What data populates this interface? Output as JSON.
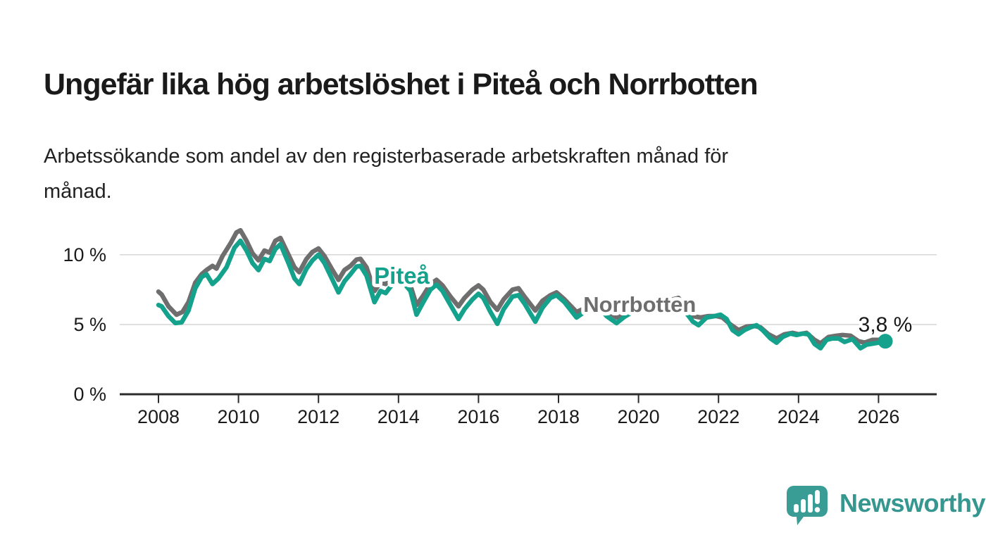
{
  "title": "Ungefär lika hög arbetslöshet i Piteå och Norrbotten",
  "subtitle_lines": [
    "Arbetssökande som andel av den registerbaserade arbetskraften månad för",
    "månad."
  ],
  "branding": {
    "name": "Newsworthy",
    "icon": "bar-chart-speech-bubble-icon",
    "text_color": "#35978f",
    "bubble_color": "#3a9d95"
  },
  "colors": {
    "pitea": "#14a28d",
    "norrbotten": "#6e6e6e",
    "grid": "#d9d9d9",
    "axis": "#2b2b2b",
    "text": "#1b1b1b",
    "annotation": "#1a1a1a"
  },
  "chart_data": {
    "type": "line",
    "title": "Ungefär lika hög arbetslöshet i Piteå och Norrbotten",
    "xlabel": "",
    "ylabel": "Arbetssökande som andel av den registerbaserade arbetskraften",
    "unit": "%",
    "xlim": [
      2007.03,
      2027.45
    ],
    "ylim": [
      0,
      12.6
    ],
    "grid": "horizontal",
    "legend_position": "inline-labels",
    "x_ticks": [
      {
        "value": 2008,
        "label": "2008"
      },
      {
        "value": 2010,
        "label": "2010"
      },
      {
        "value": 2012,
        "label": "2012"
      },
      {
        "value": 2014,
        "label": "2014"
      },
      {
        "value": 2016,
        "label": "2016"
      },
      {
        "value": 2018,
        "label": "2018"
      },
      {
        "value": 2020,
        "label": "2020"
      },
      {
        "value": 2022,
        "label": "2022"
      },
      {
        "value": 2024,
        "label": "2024"
      },
      {
        "value": 2026,
        "label": "2026"
      }
    ],
    "y_ticks": [
      {
        "value": 0,
        "label": "0 %"
      },
      {
        "value": 5,
        "label": "5 %"
      },
      {
        "value": 10,
        "label": "10 %"
      }
    ],
    "latest_annotation": {
      "text": "3,8 %",
      "series": "Piteå",
      "x": 2026.17,
      "value": 3.8
    },
    "series_labels": [
      {
        "text": "Piteå",
        "color": "#14a28d",
        "anchor_year": 2013.39,
        "anchor_value": 7.92,
        "font_size": 33
      },
      {
        "text": "Norrbotten",
        "color": "#6e6e6e",
        "anchor_year": 2018.62,
        "anchor_value": 5.9,
        "font_size": 31
      }
    ],
    "series": [
      {
        "name": "Norrbotten",
        "color": "#6e6e6e",
        "points": [
          [
            2008.0,
            7.35
          ],
          [
            2008.08,
            7.15
          ],
          [
            2008.25,
            6.3
          ],
          [
            2008.45,
            5.7
          ],
          [
            2008.6,
            5.9
          ],
          [
            2008.75,
            6.6
          ],
          [
            2008.92,
            8.0
          ],
          [
            2009.08,
            8.6
          ],
          [
            2009.2,
            8.9
          ],
          [
            2009.35,
            9.2
          ],
          [
            2009.45,
            9.0
          ],
          [
            2009.6,
            9.9
          ],
          [
            2009.8,
            10.8
          ],
          [
            2009.95,
            11.6
          ],
          [
            2010.05,
            11.75
          ],
          [
            2010.2,
            11.0
          ],
          [
            2010.35,
            10.1
          ],
          [
            2010.5,
            9.6
          ],
          [
            2010.65,
            10.3
          ],
          [
            2010.78,
            10.15
          ],
          [
            2010.92,
            11.0
          ],
          [
            2011.05,
            11.2
          ],
          [
            2011.25,
            10.0
          ],
          [
            2011.4,
            9.1
          ],
          [
            2011.52,
            8.75
          ],
          [
            2011.7,
            9.7
          ],
          [
            2011.85,
            10.2
          ],
          [
            2012.0,
            10.45
          ],
          [
            2012.15,
            9.9
          ],
          [
            2012.35,
            8.9
          ],
          [
            2012.5,
            8.2
          ],
          [
            2012.65,
            8.9
          ],
          [
            2012.8,
            9.2
          ],
          [
            2012.95,
            9.65
          ],
          [
            2013.05,
            9.7
          ],
          [
            2013.2,
            9.1
          ],
          [
            2013.4,
            7.4
          ],
          [
            2013.55,
            8.0
          ],
          [
            2013.68,
            7.9
          ],
          [
            2013.85,
            8.5
          ],
          [
            2014.0,
            8.9
          ],
          [
            2014.15,
            8.5
          ],
          [
            2014.3,
            7.8
          ],
          [
            2014.45,
            6.4
          ],
          [
            2014.6,
            7.0
          ],
          [
            2014.8,
            7.9
          ],
          [
            2014.95,
            8.2
          ],
          [
            2015.1,
            7.8
          ],
          [
            2015.3,
            7.0
          ],
          [
            2015.5,
            6.3
          ],
          [
            2015.65,
            6.9
          ],
          [
            2015.85,
            7.5
          ],
          [
            2016.0,
            7.8
          ],
          [
            2016.12,
            7.5
          ],
          [
            2016.3,
            6.6
          ],
          [
            2016.47,
            6.05
          ],
          [
            2016.63,
            6.8
          ],
          [
            2016.85,
            7.5
          ],
          [
            2017.0,
            7.6
          ],
          [
            2017.15,
            7.0
          ],
          [
            2017.42,
            6.0
          ],
          [
            2017.6,
            6.7
          ],
          [
            2017.8,
            7.1
          ],
          [
            2017.95,
            7.3
          ],
          [
            2018.15,
            6.8
          ],
          [
            2018.45,
            5.9
          ],
          [
            2018.65,
            6.15
          ],
          [
            2018.85,
            6.4
          ],
          [
            2019.0,
            6.6
          ],
          [
            2019.2,
            6.0
          ],
          [
            2019.45,
            5.5
          ],
          [
            2019.65,
            5.8
          ],
          [
            2019.85,
            6.1
          ],
          [
            2020.05,
            6.25
          ],
          [
            2020.3,
            6.5
          ],
          [
            2020.55,
            6.6
          ],
          [
            2020.8,
            6.75
          ],
          [
            2021.0,
            6.9
          ],
          [
            2021.2,
            6.1
          ],
          [
            2021.36,
            5.6
          ],
          [
            2021.55,
            5.5
          ],
          [
            2021.75,
            5.6
          ],
          [
            2021.95,
            5.6
          ],
          [
            2022.1,
            5.5
          ],
          [
            2022.3,
            5.0
          ],
          [
            2022.5,
            4.6
          ],
          [
            2022.7,
            4.85
          ],
          [
            2022.9,
            4.9
          ],
          [
            2023.05,
            4.8
          ],
          [
            2023.25,
            4.3
          ],
          [
            2023.45,
            4.0
          ],
          [
            2023.65,
            4.3
          ],
          [
            2023.85,
            4.4
          ],
          [
            2024.0,
            4.3
          ],
          [
            2024.2,
            4.4
          ],
          [
            2024.4,
            3.9
          ],
          [
            2024.55,
            3.65
          ],
          [
            2024.75,
            4.1
          ],
          [
            2024.95,
            4.2
          ],
          [
            2025.1,
            4.25
          ],
          [
            2025.3,
            4.2
          ],
          [
            2025.5,
            3.8
          ],
          [
            2025.65,
            3.7
          ],
          [
            2025.85,
            3.9
          ],
          [
            2026.0,
            3.9
          ],
          [
            2026.1,
            3.95
          ]
        ]
      },
      {
        "name": "Piteå",
        "color": "#14a28d",
        "points": [
          [
            2008.0,
            6.4
          ],
          [
            2008.08,
            6.3
          ],
          [
            2008.25,
            5.6
          ],
          [
            2008.42,
            5.1
          ],
          [
            2008.58,
            5.15
          ],
          [
            2008.75,
            6.0
          ],
          [
            2008.92,
            7.6
          ],
          [
            2009.08,
            8.4
          ],
          [
            2009.2,
            8.6
          ],
          [
            2009.35,
            7.9
          ],
          [
            2009.5,
            8.3
          ],
          [
            2009.7,
            9.1
          ],
          [
            2009.9,
            10.5
          ],
          [
            2010.05,
            11.0
          ],
          [
            2010.2,
            10.3
          ],
          [
            2010.35,
            9.4
          ],
          [
            2010.5,
            8.9
          ],
          [
            2010.65,
            9.7
          ],
          [
            2010.78,
            9.55
          ],
          [
            2010.92,
            10.4
          ],
          [
            2011.05,
            10.75
          ],
          [
            2011.25,
            9.4
          ],
          [
            2011.4,
            8.3
          ],
          [
            2011.52,
            7.9
          ],
          [
            2011.7,
            9.0
          ],
          [
            2011.85,
            9.6
          ],
          [
            2012.0,
            10.0
          ],
          [
            2012.15,
            9.4
          ],
          [
            2012.35,
            8.2
          ],
          [
            2012.5,
            7.3
          ],
          [
            2012.65,
            8.1
          ],
          [
            2012.8,
            8.6
          ],
          [
            2012.95,
            9.15
          ],
          [
            2013.05,
            9.2
          ],
          [
            2013.2,
            8.5
          ],
          [
            2013.4,
            6.6
          ],
          [
            2013.55,
            7.4
          ],
          [
            2013.68,
            7.25
          ],
          [
            2013.85,
            7.9
          ],
          [
            2014.0,
            8.3
          ],
          [
            2014.15,
            7.9
          ],
          [
            2014.3,
            7.4
          ],
          [
            2014.45,
            5.7
          ],
          [
            2014.6,
            6.5
          ],
          [
            2014.8,
            7.5
          ],
          [
            2014.95,
            7.85
          ],
          [
            2015.1,
            7.4
          ],
          [
            2015.3,
            6.4
          ],
          [
            2015.5,
            5.4
          ],
          [
            2015.65,
            6.1
          ],
          [
            2015.85,
            6.8
          ],
          [
            2016.0,
            7.2
          ],
          [
            2016.12,
            6.9
          ],
          [
            2016.3,
            5.9
          ],
          [
            2016.47,
            5.05
          ],
          [
            2016.63,
            6.1
          ],
          [
            2016.85,
            7.0
          ],
          [
            2017.0,
            7.1
          ],
          [
            2017.15,
            6.5
          ],
          [
            2017.42,
            5.2
          ],
          [
            2017.6,
            6.2
          ],
          [
            2017.8,
            6.9
          ],
          [
            2017.95,
            7.1
          ],
          [
            2018.15,
            6.6
          ],
          [
            2018.45,
            5.5
          ],
          [
            2018.65,
            5.9
          ],
          [
            2018.85,
            6.2
          ],
          [
            2019.0,
            6.3
          ],
          [
            2019.2,
            5.6
          ],
          [
            2019.45,
            5.1
          ],
          [
            2019.65,
            5.55
          ],
          [
            2019.85,
            5.9
          ],
          [
            2020.05,
            6.1
          ],
          [
            2020.3,
            6.35
          ],
          [
            2020.55,
            6.5
          ],
          [
            2020.8,
            6.45
          ],
          [
            2021.0,
            6.55
          ],
          [
            2021.2,
            5.8
          ],
          [
            2021.36,
            5.2
          ],
          [
            2021.5,
            4.95
          ],
          [
            2021.7,
            5.5
          ],
          [
            2021.9,
            5.6
          ],
          [
            2022.05,
            5.7
          ],
          [
            2022.2,
            5.4
          ],
          [
            2022.35,
            4.6
          ],
          [
            2022.5,
            4.3
          ],
          [
            2022.65,
            4.6
          ],
          [
            2022.8,
            4.8
          ],
          [
            2022.95,
            4.95
          ],
          [
            2023.1,
            4.6
          ],
          [
            2023.3,
            4.0
          ],
          [
            2023.45,
            3.7
          ],
          [
            2023.6,
            4.1
          ],
          [
            2023.8,
            4.35
          ],
          [
            2023.95,
            4.25
          ],
          [
            2024.1,
            4.35
          ],
          [
            2024.25,
            4.3
          ],
          [
            2024.4,
            3.6
          ],
          [
            2024.55,
            3.3
          ],
          [
            2024.7,
            3.9
          ],
          [
            2024.85,
            4.0
          ],
          [
            2025.0,
            4.0
          ],
          [
            2025.15,
            3.75
          ],
          [
            2025.35,
            3.95
          ],
          [
            2025.55,
            3.3
          ],
          [
            2025.7,
            3.55
          ],
          [
            2025.9,
            3.65
          ],
          [
            2026.0,
            3.7
          ],
          [
            2026.17,
            3.8
          ]
        ]
      }
    ]
  }
}
